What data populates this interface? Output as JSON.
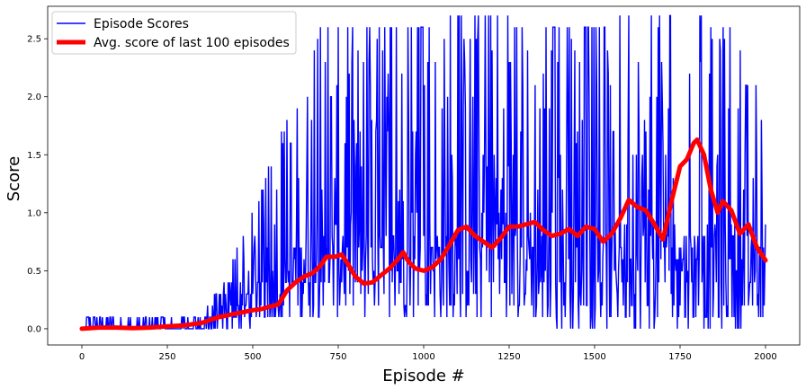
{
  "chart_data": {
    "type": "line",
    "title": "",
    "xlabel": "Episode #",
    "ylabel": "Score",
    "xlim": [
      -100,
      2100
    ],
    "ylim": [
      -0.14,
      2.78
    ],
    "x_ticks": [
      0,
      250,
      500,
      750,
      1000,
      1250,
      1500,
      1750,
      2000
    ],
    "y_ticks": [
      0.0,
      0.5,
      1.0,
      1.5,
      2.0,
      2.5
    ],
    "grid": false,
    "legend": {
      "placement": "top-left"
    },
    "series": [
      {
        "name": "Episode Scores",
        "color": "#0000ff",
        "style": "noisy episode-by-episode raw scores, values 0.0 to 2.7 (mostly 0.0-0.1 before ep 350, large spikes up to 2.6-2.7 after ep 600)",
        "envelope_points": [
          {
            "x": 0,
            "low": 0.0,
            "high": 0.0
          },
          {
            "x": 100,
            "low": 0.0,
            "high": 0.1
          },
          {
            "x": 200,
            "low": 0.0,
            "high": 0.1
          },
          {
            "x": 300,
            "low": 0.0,
            "high": 0.1
          },
          {
            "x": 400,
            "low": 0.0,
            "high": 0.3
          },
          {
            "x": 500,
            "low": 0.0,
            "high": 1.0
          },
          {
            "x": 600,
            "low": 0.1,
            "high": 1.8
          },
          {
            "x": 700,
            "low": 0.1,
            "high": 2.6
          },
          {
            "x": 800,
            "low": 0.1,
            "high": 2.6
          },
          {
            "x": 900,
            "low": 0.1,
            "high": 2.6
          },
          {
            "x": 1000,
            "low": 0.1,
            "high": 2.6
          },
          {
            "x": 1100,
            "low": 0.1,
            "high": 2.7
          },
          {
            "x": 1200,
            "low": 0.1,
            "high": 2.7
          },
          {
            "x": 1300,
            "low": 0.1,
            "high": 2.6
          },
          {
            "x": 1400,
            "low": 0.0,
            "high": 2.6
          },
          {
            "x": 1500,
            "low": 0.0,
            "high": 2.6
          },
          {
            "x": 1600,
            "low": 0.0,
            "high": 2.7
          },
          {
            "x": 1700,
            "low": 0.0,
            "high": 2.7
          },
          {
            "x": 1800,
            "low": 0.0,
            "high": 2.7
          },
          {
            "x": 1900,
            "low": 0.0,
            "high": 2.6
          },
          {
            "x": 2000,
            "low": 0.1,
            "high": 1.9
          }
        ]
      },
      {
        "name": "Avg. score of last 100 episodes",
        "color": "#ff0000",
        "points": [
          {
            "x": 0,
            "y": 0.0
          },
          {
            "x": 50,
            "y": 0.01
          },
          {
            "x": 100,
            "y": 0.01
          },
          {
            "x": 150,
            "y": 0.005
          },
          {
            "x": 200,
            "y": 0.01
          },
          {
            "x": 250,
            "y": 0.02
          },
          {
            "x": 300,
            "y": 0.03
          },
          {
            "x": 350,
            "y": 0.05
          },
          {
            "x": 400,
            "y": 0.1
          },
          {
            "x": 450,
            "y": 0.13
          },
          {
            "x": 500,
            "y": 0.16
          },
          {
            "x": 525,
            "y": 0.17
          },
          {
            "x": 550,
            "y": 0.19
          },
          {
            "x": 575,
            "y": 0.21
          },
          {
            "x": 600,
            "y": 0.33
          },
          {
            "x": 625,
            "y": 0.4
          },
          {
            "x": 650,
            "y": 0.45
          },
          {
            "x": 675,
            "y": 0.48
          },
          {
            "x": 700,
            "y": 0.55
          },
          {
            "x": 715,
            "y": 0.62
          },
          {
            "x": 740,
            "y": 0.62
          },
          {
            "x": 760,
            "y": 0.64
          },
          {
            "x": 780,
            "y": 0.55
          },
          {
            "x": 800,
            "y": 0.45
          },
          {
            "x": 825,
            "y": 0.39
          },
          {
            "x": 850,
            "y": 0.4
          },
          {
            "x": 875,
            "y": 0.46
          },
          {
            "x": 900,
            "y": 0.52
          },
          {
            "x": 925,
            "y": 0.6
          },
          {
            "x": 940,
            "y": 0.66
          },
          {
            "x": 955,
            "y": 0.58
          },
          {
            "x": 975,
            "y": 0.52
          },
          {
            "x": 1000,
            "y": 0.5
          },
          {
            "x": 1025,
            "y": 0.53
          },
          {
            "x": 1050,
            "y": 0.6
          },
          {
            "x": 1075,
            "y": 0.72
          },
          {
            "x": 1100,
            "y": 0.85
          },
          {
            "x": 1125,
            "y": 0.88
          },
          {
            "x": 1150,
            "y": 0.8
          },
          {
            "x": 1175,
            "y": 0.75
          },
          {
            "x": 1200,
            "y": 0.7
          },
          {
            "x": 1225,
            "y": 0.78
          },
          {
            "x": 1250,
            "y": 0.88
          },
          {
            "x": 1275,
            "y": 0.88
          },
          {
            "x": 1300,
            "y": 0.9
          },
          {
            "x": 1325,
            "y": 0.92
          },
          {
            "x": 1350,
            "y": 0.85
          },
          {
            "x": 1375,
            "y": 0.8
          },
          {
            "x": 1400,
            "y": 0.82
          },
          {
            "x": 1425,
            "y": 0.86
          },
          {
            "x": 1450,
            "y": 0.8
          },
          {
            "x": 1475,
            "y": 0.88
          },
          {
            "x": 1500,
            "y": 0.86
          },
          {
            "x": 1525,
            "y": 0.75
          },
          {
            "x": 1550,
            "y": 0.82
          },
          {
            "x": 1575,
            "y": 0.95
          },
          {
            "x": 1600,
            "y": 1.11
          },
          {
            "x": 1625,
            "y": 1.05
          },
          {
            "x": 1650,
            "y": 1.02
          },
          {
            "x": 1675,
            "y": 0.9
          },
          {
            "x": 1700,
            "y": 0.77
          },
          {
            "x": 1725,
            "y": 1.1
          },
          {
            "x": 1750,
            "y": 1.4
          },
          {
            "x": 1770,
            "y": 1.46
          },
          {
            "x": 1790,
            "y": 1.6
          },
          {
            "x": 1800,
            "y": 1.63
          },
          {
            "x": 1820,
            "y": 1.5
          },
          {
            "x": 1840,
            "y": 1.2
          },
          {
            "x": 1860,
            "y": 1.0
          },
          {
            "x": 1875,
            "y": 1.1
          },
          {
            "x": 1900,
            "y": 1.02
          },
          {
            "x": 1925,
            "y": 0.82
          },
          {
            "x": 1950,
            "y": 0.9
          },
          {
            "x": 1975,
            "y": 0.7
          },
          {
            "x": 2000,
            "y": 0.59
          }
        ]
      }
    ]
  }
}
